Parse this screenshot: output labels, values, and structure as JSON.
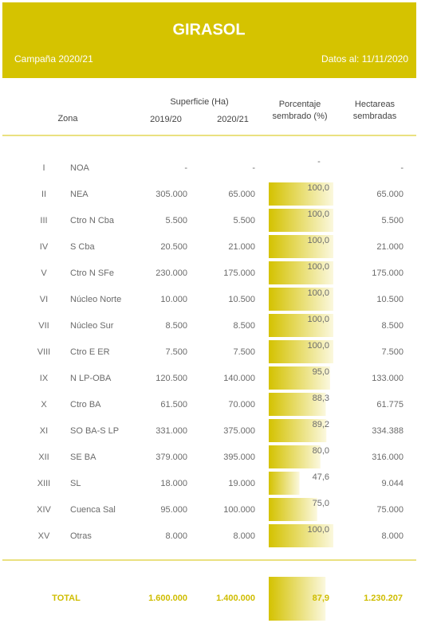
{
  "header": {
    "title": "GIRASOL",
    "campaign": "Campaña 2020/21",
    "date": "Datos al: 11/11/2020"
  },
  "table": {
    "columns": {
      "zona": "Zona",
      "superficie": "Superficie (Ha)",
      "year1": "2019/20",
      "year2": "2020/21",
      "pct": [
        "Porcentaje",
        "sembrado (%)"
      ],
      "hect": [
        "Hectareas",
        "sembradas"
      ]
    },
    "rows": [
      [
        "I",
        "NOA",
        "-",
        "-",
        {
          "value": null,
          "label": "-"
        },
        "-"
      ],
      [
        "II",
        "NEA",
        "305.000",
        "65.000",
        {
          "value": 100,
          "label": "100,0"
        },
        "65.000"
      ],
      [
        "III",
        "Ctro N Cba",
        "5.500",
        "5.500",
        {
          "value": 100,
          "label": "100,0"
        },
        "5.500"
      ],
      [
        "IV",
        "S Cba",
        "20.500",
        "21.000",
        {
          "value": 100,
          "label": "100,0"
        },
        "21.000"
      ],
      [
        "V",
        "Ctro N SFe",
        "230.000",
        "175.000",
        {
          "value": 100,
          "label": "100,0"
        },
        "175.000"
      ],
      [
        "VI",
        "Núcleo Norte",
        "10.000",
        "10.500",
        {
          "value": 100,
          "label": "100,0"
        },
        "10.500"
      ],
      [
        "VII",
        "Núcleo Sur",
        "8.500",
        "8.500",
        {
          "value": 100,
          "label": "100,0"
        },
        "8.500"
      ],
      [
        "VIII",
        "Ctro E ER",
        "7.500",
        "7.500",
        {
          "value": 100,
          "label": "100,0"
        },
        "7.500"
      ],
      [
        "IX",
        "N LP-OBA",
        "120.500",
        "140.000",
        {
          "value": 95,
          "label": "95,0"
        },
        "133.000"
      ],
      [
        "X",
        "Ctro BA",
        "61.500",
        "70.000",
        {
          "value": 88.3,
          "label": "88,3"
        },
        "61.775"
      ],
      [
        "XI",
        "SO BA-S LP",
        "331.000",
        "375.000",
        {
          "value": 89.2,
          "label": "89,2"
        },
        "334.388"
      ],
      [
        "XII",
        "SE BA",
        "379.000",
        "395.000",
        {
          "value": 80,
          "label": "80,0"
        },
        "316.000"
      ],
      [
        "XIII",
        "SL",
        "18.000",
        "19.000",
        {
          "value": 47.6,
          "label": "47,6"
        },
        "9.044"
      ],
      [
        "XIV",
        "Cuenca Sal",
        "95.000",
        "100.000",
        {
          "value": 75,
          "label": "75,0"
        },
        "75.000"
      ],
      [
        "XV",
        "Otras",
        "8.000",
        "8.000",
        {
          "value": 100,
          "label": "100,0"
        },
        "8.000"
      ]
    ],
    "total": [
      "TOTAL",
      "1.600.000",
      "1.400.000",
      {
        "value": 87.9,
        "label": "87,9"
      },
      "1.230.207"
    ]
  }
}
